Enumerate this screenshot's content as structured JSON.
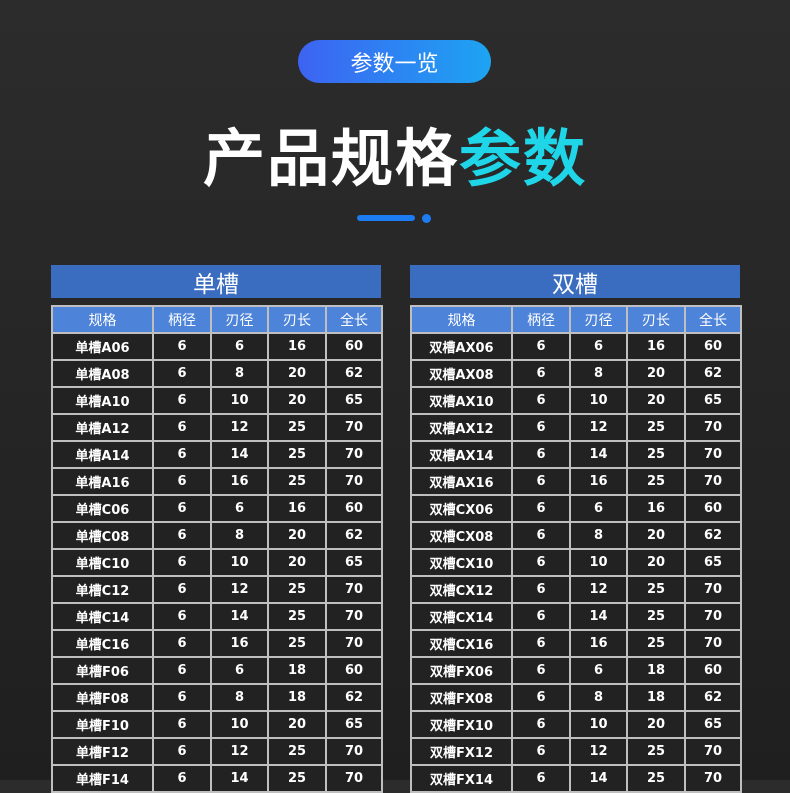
{
  "badge": "参数一览",
  "title": {
    "main": "产品规格",
    "highlight": "参数"
  },
  "colors": {
    "accent": "#1fd5e8",
    "header": "#3a6cc0",
    "pill_start": "#3d63f2",
    "pill_end": "#1da4f2"
  },
  "columns": [
    "规格",
    "柄径",
    "刃径",
    "刃长",
    "全长"
  ],
  "tables": [
    {
      "caption": "单槽",
      "rows": [
        [
          "单槽A06",
          "6",
          "6",
          "16",
          "60"
        ],
        [
          "单槽A08",
          "6",
          "8",
          "20",
          "62"
        ],
        [
          "单槽A10",
          "6",
          "10",
          "20",
          "65"
        ],
        [
          "单槽A12",
          "6",
          "12",
          "25",
          "70"
        ],
        [
          "单槽A14",
          "6",
          "14",
          "25",
          "70"
        ],
        [
          "单槽A16",
          "6",
          "16",
          "25",
          "70"
        ],
        [
          "单槽C06",
          "6",
          "6",
          "16",
          "60"
        ],
        [
          "单槽C08",
          "6",
          "8",
          "20",
          "62"
        ],
        [
          "单槽C10",
          "6",
          "10",
          "20",
          "65"
        ],
        [
          "单槽C12",
          "6",
          "12",
          "25",
          "70"
        ],
        [
          "单槽C14",
          "6",
          "14",
          "25",
          "70"
        ],
        [
          "单槽C16",
          "6",
          "16",
          "25",
          "70"
        ],
        [
          "单槽F06",
          "6",
          "6",
          "18",
          "60"
        ],
        [
          "单槽F08",
          "6",
          "8",
          "18",
          "62"
        ],
        [
          "单槽F10",
          "6",
          "10",
          "20",
          "65"
        ],
        [
          "单槽F12",
          "6",
          "12",
          "25",
          "70"
        ],
        [
          "单槽F14",
          "6",
          "14",
          "25",
          "70"
        ]
      ]
    },
    {
      "caption": "双槽",
      "rows": [
        [
          "双槽AX06",
          "6",
          "6",
          "16",
          "60"
        ],
        [
          "双槽AX08",
          "6",
          "8",
          "20",
          "62"
        ],
        [
          "双槽AX10",
          "6",
          "10",
          "20",
          "65"
        ],
        [
          "双槽AX12",
          "6",
          "12",
          "25",
          "70"
        ],
        [
          "双槽AX14",
          "6",
          "14",
          "25",
          "70"
        ],
        [
          "双槽AX16",
          "6",
          "16",
          "25",
          "70"
        ],
        [
          "双槽CX06",
          "6",
          "6",
          "16",
          "60"
        ],
        [
          "双槽CX08",
          "6",
          "8",
          "20",
          "62"
        ],
        [
          "双槽CX10",
          "6",
          "10",
          "20",
          "65"
        ],
        [
          "双槽CX12",
          "6",
          "12",
          "25",
          "70"
        ],
        [
          "双槽CX14",
          "6",
          "14",
          "25",
          "70"
        ],
        [
          "双槽CX16",
          "6",
          "16",
          "25",
          "70"
        ],
        [
          "双槽FX06",
          "6",
          "6",
          "18",
          "60"
        ],
        [
          "双槽FX08",
          "6",
          "8",
          "18",
          "62"
        ],
        [
          "双槽FX10",
          "6",
          "10",
          "20",
          "65"
        ],
        [
          "双槽FX12",
          "6",
          "12",
          "25",
          "70"
        ],
        [
          "双槽FX14",
          "6",
          "14",
          "25",
          "70"
        ]
      ]
    }
  ]
}
